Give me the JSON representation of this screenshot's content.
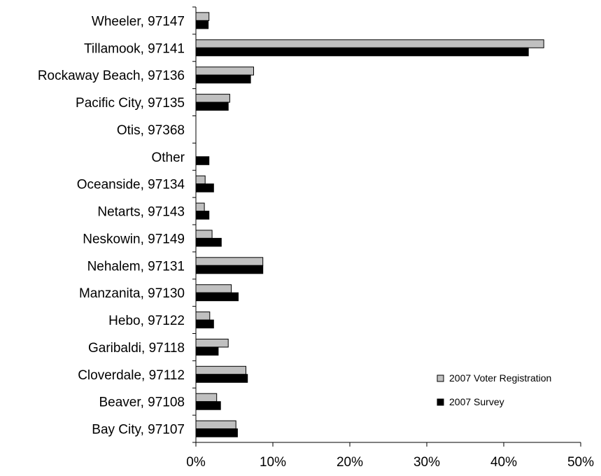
{
  "chart_data": {
    "type": "bar",
    "orientation": "horizontal",
    "categories": [
      "Wheeler, 97147",
      "Tillamook, 97141",
      "Rockaway Beach, 97136",
      "Pacific City, 97135",
      "Otis, 97368",
      "Other",
      "Oceanside, 97134",
      "Netarts, 97143",
      "Neskowin, 97149",
      "Nehalem, 97131",
      "Manzanita, 97130",
      "Hebo, 97122",
      "Garibaldi, 97118",
      "Cloverdale, 97112",
      "Beaver, 97108",
      "Bay City, 97107"
    ],
    "series": [
      {
        "name": "2007 Voter Registration",
        "color": "#c0c0c0",
        "values": [
          1.7,
          45.2,
          7.5,
          4.4,
          0,
          0,
          1.2,
          1.1,
          2.1,
          8.7,
          4.6,
          1.8,
          4.2,
          6.5,
          2.7,
          5.2
        ]
      },
      {
        "name": "2007 Survey",
        "color": "#000000",
        "values": [
          1.6,
          43.2,
          7.1,
          4.2,
          0,
          1.7,
          2.3,
          1.7,
          3.3,
          8.7,
          5.5,
          2.3,
          2.9,
          6.7,
          3.2,
          5.4
        ]
      }
    ],
    "xlim": [
      0,
      50
    ],
    "xticks": [
      "0%",
      "10%",
      "20%",
      "30%",
      "40%",
      "50%"
    ],
    "xlabel": "",
    "ylabel": "",
    "title": "",
    "grid": false,
    "legend_position": "bottom-right"
  }
}
